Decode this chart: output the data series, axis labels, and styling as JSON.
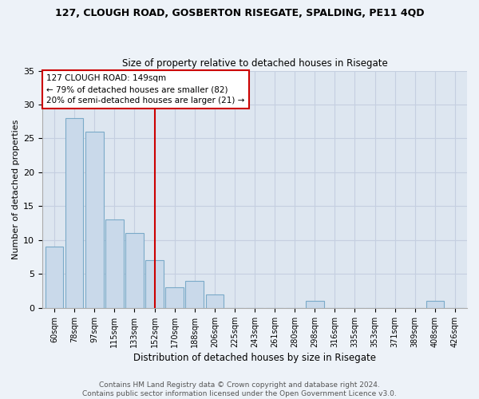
{
  "title": "127, CLOUGH ROAD, GOSBERTON RISEGATE, SPALDING, PE11 4QD",
  "subtitle": "Size of property relative to detached houses in Risegate",
  "xlabel": "Distribution of detached houses by size in Risegate",
  "ylabel": "Number of detached properties",
  "bar_labels": [
    "60sqm",
    "78sqm",
    "97sqm",
    "115sqm",
    "133sqm",
    "152sqm",
    "170sqm",
    "188sqm",
    "206sqm",
    "225sqm",
    "243sqm",
    "261sqm",
    "280sqm",
    "298sqm",
    "316sqm",
    "335sqm",
    "353sqm",
    "371sqm",
    "389sqm",
    "408sqm",
    "426sqm"
  ],
  "bar_values": [
    9,
    28,
    26,
    13,
    11,
    7,
    3,
    4,
    2,
    0,
    0,
    0,
    0,
    1,
    0,
    0,
    0,
    0,
    0,
    1,
    0
  ],
  "bar_color": "#c9d9ea",
  "bar_edgecolor": "#7aaac8",
  "vline_index": 5,
  "vline_color": "#cc0000",
  "annotation_text": "127 CLOUGH ROAD: 149sqm\n← 79% of detached houses are smaller (82)\n20% of semi-detached houses are larger (21) →",
  "annotation_box_color": "#ffffff",
  "annotation_box_edgecolor": "#cc0000",
  "ylim": [
    0,
    35
  ],
  "yticks": [
    0,
    5,
    10,
    15,
    20,
    25,
    30,
    35
  ],
  "grid_color": "#c5cfe0",
  "bg_color": "#dde6f0",
  "fig_color": "#edf2f8",
  "footer": "Contains HM Land Registry data © Crown copyright and database right 2024.\nContains public sector information licensed under the Open Government Licence v3.0."
}
